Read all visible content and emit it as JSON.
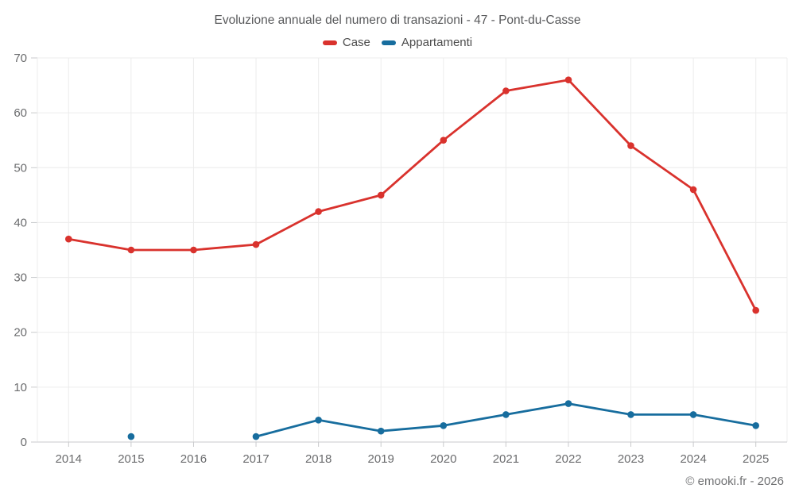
{
  "title": "Evoluzione annuale del numero di transazioni - 47 - Pont-du-Casse",
  "footer": "© emooki.fr - 2026",
  "legend": [
    {
      "label": "Case",
      "color": "#d9322d"
    },
    {
      "label": "Appartamenti",
      "color": "#176d9e"
    }
  ],
  "chart_data": {
    "type": "line",
    "title": "Evoluzione annuale del numero di transazioni - 47 - Pont-du-Casse",
    "categories": [
      "2014",
      "2015",
      "2016",
      "2017",
      "2018",
      "2019",
      "2020",
      "2021",
      "2022",
      "2023",
      "2024",
      "2025"
    ],
    "series": [
      {
        "name": "Case",
        "color": "#d9322d",
        "values": [
          37,
          35,
          35,
          36,
          42,
          45,
          55,
          64,
          66,
          54,
          46,
          24
        ]
      },
      {
        "name": "Appartamenti",
        "color": "#176d9e",
        "values": [
          null,
          1,
          null,
          1,
          4,
          2,
          3,
          5,
          7,
          5,
          5,
          3
        ]
      }
    ],
    "xlabel": "",
    "ylabel": "",
    "ylim": [
      0,
      70
    ],
    "yticks": [
      0,
      10,
      20,
      30,
      40,
      50,
      60,
      70
    ],
    "grid": true,
    "legend_position": "top"
  }
}
